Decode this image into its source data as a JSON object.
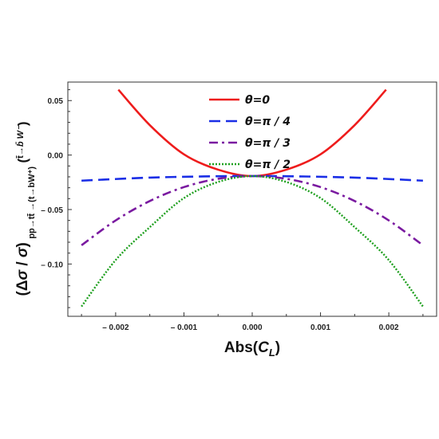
{
  "chart_data": {
    "type": "line",
    "title": "",
    "xlabel": "Abs(C_L)",
    "ylabel": "(Δσ/σ) pp→tt̄→(t→bW⁺)(t̄→b̄ W⁻)",
    "xlim": [
      -0.0027,
      0.0027
    ],
    "ylim": [
      -0.148,
      0.067
    ],
    "x_ticks": [
      -0.002,
      -0.001,
      0.0,
      0.001,
      0.002
    ],
    "x_tick_labels": [
      "– 0.002",
      "– 0.001",
      "0.000",
      "0.001",
      "0.002"
    ],
    "y_ticks": [
      0.05,
      0.0,
      -0.05,
      -0.1
    ],
    "y_tick_labels": [
      "0.05",
      "0.00",
      "– 0.05",
      "– 0.10"
    ],
    "grid": false,
    "legend_position": "top-center",
    "series": [
      {
        "name": "θ=0",
        "color": "#ee1c1c",
        "dash": "solid",
        "x": [
          -0.00196,
          -0.0015,
          -0.001,
          -0.0005,
          0.0,
          0.0005,
          0.001,
          0.0015,
          0.00196
        ],
        "y": [
          0.06,
          0.0275,
          0.0007,
          -0.0134,
          -0.0193,
          -0.0134,
          0.0007,
          0.0275,
          0.06
        ]
      },
      {
        "name": "θ=π / 4",
        "color": "#1a2ee6",
        "dash": "dashed",
        "x": [
          -0.0025,
          -0.0015,
          -0.0005,
          0.0,
          0.0005,
          0.0015,
          0.0025
        ],
        "y": [
          -0.0235,
          -0.0207,
          -0.0194,
          -0.0193,
          -0.0194,
          -0.0207,
          -0.0235
        ]
      },
      {
        "name": "θ=π / 3",
        "color": "#7a1aa0",
        "dash": "dashdot",
        "x": [
          -0.0025,
          -0.002,
          -0.0015,
          -0.001,
          -0.0005,
          0.0,
          0.0005,
          0.001,
          0.0015,
          0.002,
          0.0025
        ],
        "y": [
          -0.0828,
          -0.06,
          -0.0422,
          -0.0294,
          -0.0218,
          -0.0193,
          -0.0218,
          -0.0294,
          -0.0422,
          -0.06,
          -0.0828
        ]
      },
      {
        "name": "θ=π / 2",
        "color": "#1fa01f",
        "dash": "dotted",
        "x": [
          -0.0025,
          -0.002,
          -0.0015,
          -0.001,
          -0.0005,
          0.0,
          0.0005,
          0.001,
          0.0015,
          0.002,
          0.0025
        ],
        "y": [
          -0.139,
          -0.0964,
          -0.0662,
          -0.0395,
          -0.0247,
          -0.0193,
          -0.0247,
          -0.0395,
          -0.0662,
          -0.0964,
          -0.139
        ]
      }
    ]
  }
}
